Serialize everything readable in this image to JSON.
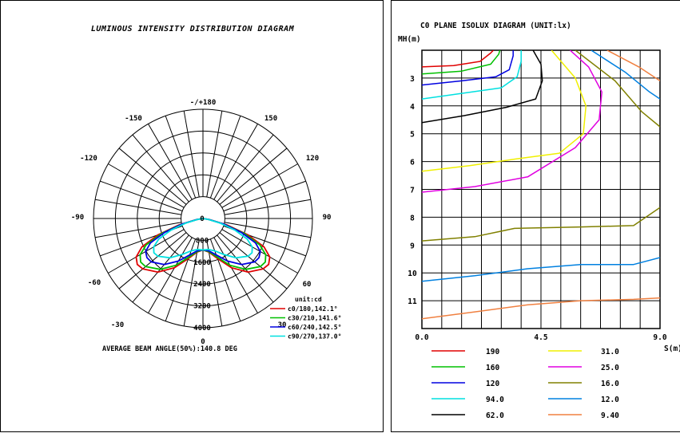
{
  "left_panel": {
    "title": "LUMINOUS INTENSITY DISTRIBUTION DIAGRAM",
    "angle_labels": [
      "-/+180",
      "-150",
      "150",
      "-120",
      "120",
      "-90",
      "90",
      "-60",
      "60",
      "-30",
      "30",
      "0"
    ],
    "radial_labels": [
      "0",
      "800",
      "1600",
      "2400",
      "3200",
      "4000"
    ],
    "legend_title": "unit:cd",
    "legend": [
      {
        "label": "c0/180,142.1°",
        "color": "#e00000"
      },
      {
        "label": "c30/210,141.6°",
        "color": "#00c000"
      },
      {
        "label": "c60/240,142.5°",
        "color": "#0000e0"
      },
      {
        "label": "c90/270,137.0°",
        "color": "#00e0e0"
      }
    ],
    "beam_angle_text": "AVERAGE BEAM ANGLE(50%):140.8 DEG"
  },
  "right_panel": {
    "title": "C0 PLANE ISOLUX DIAGRAM (UNIT:lx)",
    "y_axis_label": "MH(m)",
    "x_axis_label": "S(m)",
    "y_ticks": [
      "3",
      "4",
      "5",
      "6",
      "7",
      "8",
      "9",
      "10",
      "11"
    ],
    "x_ticks": [
      "0.0",
      "4.5",
      "9.0"
    ],
    "legend": [
      {
        "label": "190",
        "color": "#e00000"
      },
      {
        "label": "31.0",
        "color": "#f0f000"
      },
      {
        "label": "160",
        "color": "#00c000"
      },
      {
        "label": "25.0",
        "color": "#e000e0"
      },
      {
        "label": "120",
        "color": "#0000e0"
      },
      {
        "label": "16.0",
        "color": "#808000"
      },
      {
        "label": "94.0",
        "color": "#00e0e0"
      },
      {
        "label": "12.0",
        "color": "#0080e0"
      },
      {
        "label": "62.0",
        "color": "#000000"
      },
      {
        "label": "9.40",
        "color": "#f08040"
      }
    ]
  },
  "chart_data": [
    {
      "type": "polar",
      "title": "LUMINOUS INTENSITY DISTRIBUTION DIAGRAM",
      "unit": "cd",
      "rlim": [
        0,
        4000
      ],
      "angle_unit": "deg",
      "series": [
        {
          "name": "c0/180,142.1°",
          "color": "#e00000",
          "angles": [
            0,
            10,
            20,
            30,
            40,
            50,
            55,
            60,
            65,
            70,
            75,
            80
          ],
          "values": [
            1150,
            1250,
            1560,
            2080,
            2560,
            2870,
            2930,
            2820,
            2460,
            1750,
            900,
            250
          ]
        },
        {
          "name": "c30/210,141.6°",
          "color": "#00c000",
          "angles": [
            0,
            10,
            20,
            30,
            40,
            50,
            55,
            60,
            65,
            70,
            75,
            80
          ],
          "values": [
            1150,
            1230,
            1500,
            1980,
            2430,
            2740,
            2780,
            2650,
            2290,
            1600,
            820,
            230
          ]
        },
        {
          "name": "c60/240,142.5°",
          "color": "#0000e0",
          "angles": [
            0,
            10,
            20,
            30,
            40,
            50,
            55,
            60,
            65,
            70,
            75,
            80
          ],
          "values": [
            1150,
            1200,
            1420,
            1800,
            2200,
            2470,
            2500,
            2420,
            2120,
            1500,
            780,
            220
          ]
        },
        {
          "name": "c90/270,137.0°",
          "color": "#00e0e0",
          "angles": [
            0,
            10,
            20,
            30,
            40,
            50,
            55,
            60,
            65,
            70,
            75,
            80
          ],
          "values": [
            1150,
            1150,
            1260,
            1520,
            1880,
            2150,
            2190,
            2080,
            1780,
            1240,
            660,
            200
          ]
        }
      ]
    },
    {
      "type": "line",
      "title": "C0 PLANE ISOLUX DIAGRAM (UNIT:lx)",
      "xlabel": "S(m)",
      "ylabel": "MH(m)",
      "xlim": [
        0,
        9
      ],
      "ylim": [
        2,
        12
      ],
      "y_inverted": true,
      "series": [
        {
          "name": "190",
          "color": "#e00000",
          "points": [
            [
              0,
              2.6
            ],
            [
              1.2,
              2.55
            ],
            [
              2.2,
              2.4
            ],
            [
              2.6,
              2.1
            ],
            [
              2.7,
              2.0
            ]
          ]
        },
        {
          "name": "160",
          "color": "#00c000",
          "points": [
            [
              0,
              2.85
            ],
            [
              1.5,
              2.75
            ],
            [
              2.6,
              2.5
            ],
            [
              2.9,
              2.15
            ],
            [
              2.95,
              2.0
            ]
          ]
        },
        {
          "name": "120",
          "color": "#0000e0",
          "points": [
            [
              0,
              3.25
            ],
            [
              1.5,
              3.1
            ],
            [
              2.8,
              2.95
            ],
            [
              3.3,
              2.7
            ],
            [
              3.45,
              2.2
            ],
            [
              3.45,
              2.0
            ]
          ]
        },
        {
          "name": "94.0",
          "color": "#00e0e0",
          "points": [
            [
              0,
              3.75
            ],
            [
              1.5,
              3.55
            ],
            [
              3.0,
              3.35
            ],
            [
              3.6,
              2.95
            ],
            [
              3.75,
              2.4
            ],
            [
              3.75,
              2.0
            ]
          ]
        },
        {
          "name": "62.0",
          "color": "#000000",
          "points": [
            [
              0,
              4.6
            ],
            [
              1.6,
              4.35
            ],
            [
              3.2,
              4.05
            ],
            [
              4.3,
              3.75
            ],
            [
              4.55,
              3.1
            ],
            [
              4.5,
              2.5
            ],
            [
              4.2,
              2.0
            ]
          ]
        },
        {
          "name": "31.0",
          "color": "#f0f000",
          "points": [
            [
              0,
              6.35
            ],
            [
              1.8,
              6.15
            ],
            [
              3.6,
              5.9
            ],
            [
              5.2,
              5.7
            ],
            [
              6.1,
              5.0
            ],
            [
              6.2,
              4.0
            ],
            [
              5.8,
              3.0
            ],
            [
              4.9,
              2.0
            ]
          ]
        },
        {
          "name": "25.0",
          "color": "#e000e0",
          "points": [
            [
              0,
              7.1
            ],
            [
              2.0,
              6.9
            ],
            [
              4.0,
              6.55
            ],
            [
              5.8,
              5.5
            ],
            [
              6.7,
              4.5
            ],
            [
              6.8,
              3.5
            ],
            [
              6.3,
              2.6
            ],
            [
              5.6,
              2.0
            ]
          ]
        },
        {
          "name": "16.0",
          "color": "#808000",
          "points": [
            [
              0,
              8.85
            ],
            [
              2.0,
              8.7
            ],
            [
              3.5,
              8.4
            ],
            [
              6.0,
              8.35
            ],
            [
              8.0,
              8.3
            ],
            [
              9.0,
              7.65
            ]
          ]
        },
        {
          "name": "12.0",
          "color": "#0080e0",
          "points": [
            [
              0,
              10.3
            ],
            [
              2.0,
              10.1
            ],
            [
              4.0,
              9.85
            ],
            [
              6.0,
              9.7
            ],
            [
              8.0,
              9.7
            ],
            [
              9.0,
              9.45
            ]
          ]
        },
        {
          "name": "9.40",
          "color": "#f08040",
          "points": [
            [
              0,
              11.65
            ],
            [
              2.0,
              11.4
            ],
            [
              4.0,
              11.15
            ],
            [
              6.0,
              11.0
            ],
            [
              8.0,
              10.95
            ],
            [
              9.0,
              10.9
            ]
          ]
        },
        {
          "name": "16.0",
          "color": "#808000",
          "points": [
            [
              5.8,
              2.0
            ],
            [
              7.3,
              3.1
            ],
            [
              8.3,
              4.2
            ],
            [
              9.0,
              4.75
            ]
          ]
        },
        {
          "name": "12.0",
          "color": "#0080e0",
          "points": [
            [
              6.4,
              2.0
            ],
            [
              7.7,
              2.8
            ],
            [
              8.6,
              3.5
            ],
            [
              9.0,
              3.75
            ]
          ]
        },
        {
          "name": "9.40",
          "color": "#f08040",
          "points": [
            [
              7.0,
              2.0
            ],
            [
              8.2,
              2.6
            ],
            [
              9.0,
              3.1
            ]
          ]
        }
      ]
    }
  ]
}
